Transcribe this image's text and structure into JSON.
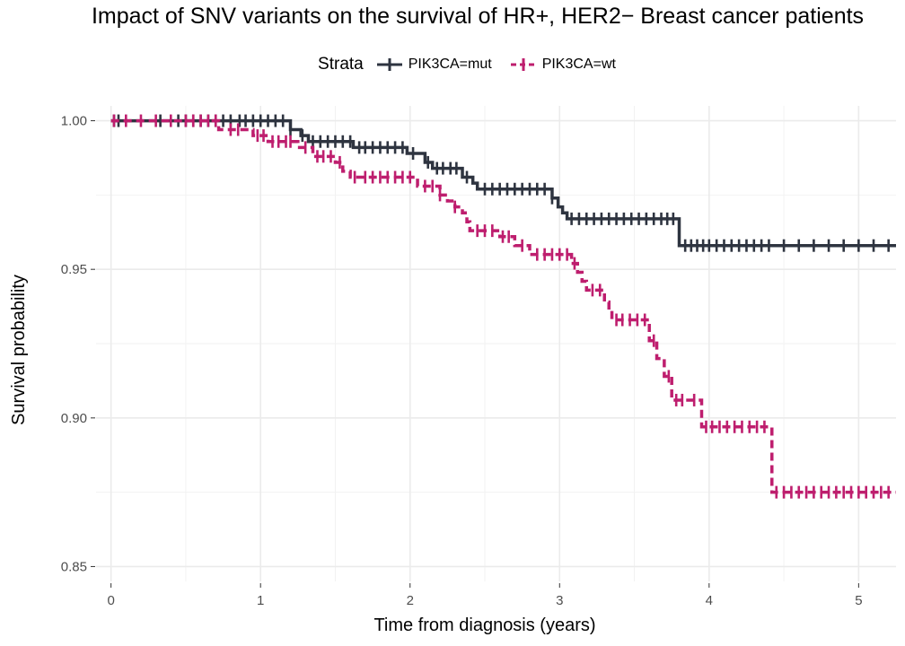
{
  "chart_data": {
    "type": "line",
    "title": "Impact of SNV variants on the survival of HR+, HER2− Breast cancer patients",
    "xlabel": "Time from diagnosis (years)",
    "ylabel": "Survival probability",
    "xlim": [
      -0.1,
      5.25
    ],
    "ylim": [
      0.845,
      1.005
    ],
    "x_ticks": [
      0,
      1,
      2,
      3,
      4,
      5
    ],
    "y_ticks": [
      0.85,
      0.9,
      0.95,
      1.0
    ],
    "y_tick_labels": [
      "0.85",
      "0.90",
      "0.95",
      "1.00"
    ],
    "legend_title": "Strata",
    "legend_position": "top",
    "grid": true,
    "series": [
      {
        "name": "PIK3CA=mut",
        "color": "#2e3440",
        "linestyle": "solid",
        "steps": [
          [
            0,
            1.0
          ],
          [
            1.2,
            0.997
          ],
          [
            1.27,
            0.995
          ],
          [
            1.32,
            0.993
          ],
          [
            1.62,
            0.991
          ],
          [
            1.98,
            0.989
          ],
          [
            2.1,
            0.986
          ],
          [
            2.15,
            0.984
          ],
          [
            2.35,
            0.981
          ],
          [
            2.42,
            0.979
          ],
          [
            2.45,
            0.977
          ],
          [
            2.95,
            0.974
          ],
          [
            2.99,
            0.971
          ],
          [
            3.02,
            0.969
          ],
          [
            3.05,
            0.967
          ],
          [
            3.8,
            0.958
          ],
          [
            5.25,
            0.958
          ]
        ],
        "censor_times": [
          0.02,
          0.05,
          0.33,
          0.45,
          0.5,
          0.55,
          0.6,
          0.65,
          0.7,
          0.75,
          0.8,
          0.86,
          0.9,
          0.95,
          1.0,
          1.05,
          1.1,
          1.15,
          1.2,
          1.28,
          1.35,
          1.4,
          1.45,
          1.5,
          1.55,
          1.6,
          1.66,
          1.7,
          1.75,
          1.8,
          1.85,
          1.9,
          1.95,
          2.02,
          2.12,
          2.18,
          2.22,
          2.27,
          2.31,
          2.38,
          2.5,
          2.55,
          2.6,
          2.65,
          2.7,
          2.75,
          2.8,
          2.85,
          2.9,
          2.95,
          3.08,
          3.13,
          3.18,
          3.23,
          3.28,
          3.33,
          3.38,
          3.43,
          3.48,
          3.53,
          3.58,
          3.63,
          3.68,
          3.72,
          3.76,
          3.84,
          3.88,
          3.92,
          3.96,
          4.0,
          4.05,
          4.1,
          4.15,
          4.2,
          4.25,
          4.3,
          4.35,
          4.4,
          4.5,
          4.6,
          4.7,
          4.8,
          4.9,
          5.0,
          5.1,
          5.2
        ]
      },
      {
        "name": "PIK3CA=wt",
        "color": "#be1e6e",
        "linestyle": "dashed",
        "steps": [
          [
            0,
            1.0
          ],
          [
            0.72,
            0.997
          ],
          [
            0.95,
            0.995
          ],
          [
            1.05,
            0.993
          ],
          [
            1.25,
            0.991
          ],
          [
            1.35,
            0.988
          ],
          [
            1.5,
            0.986
          ],
          [
            1.55,
            0.983
          ],
          [
            1.6,
            0.981
          ],
          [
            2.05,
            0.978
          ],
          [
            2.2,
            0.975
          ],
          [
            2.25,
            0.973
          ],
          [
            2.3,
            0.971
          ],
          [
            2.35,
            0.969
          ],
          [
            2.38,
            0.966
          ],
          [
            2.4,
            0.963
          ],
          [
            2.6,
            0.961
          ],
          [
            2.7,
            0.958
          ],
          [
            2.8,
            0.955
          ],
          [
            3.08,
            0.952
          ],
          [
            3.12,
            0.949
          ],
          [
            3.15,
            0.946
          ],
          [
            3.18,
            0.943
          ],
          [
            3.3,
            0.939
          ],
          [
            3.33,
            0.936
          ],
          [
            3.35,
            0.933
          ],
          [
            3.6,
            0.926
          ],
          [
            3.65,
            0.92
          ],
          [
            3.7,
            0.914
          ],
          [
            3.75,
            0.906
          ],
          [
            3.95,
            0.897
          ],
          [
            4.42,
            0.875
          ],
          [
            5.25,
            0.875
          ]
        ],
        "censor_times": [
          0.02,
          0.1,
          0.2,
          0.3,
          0.4,
          0.5,
          0.55,
          0.6,
          0.65,
          0.7,
          0.8,
          0.85,
          0.98,
          1.02,
          1.08,
          1.12,
          1.17,
          1.2,
          1.3,
          1.38,
          1.42,
          1.47,
          1.53,
          1.63,
          1.7,
          1.75,
          1.8,
          1.85,
          1.9,
          1.95,
          2.0,
          2.1,
          2.15,
          2.2,
          2.3,
          2.45,
          2.5,
          2.55,
          2.62,
          2.66,
          2.75,
          2.85,
          2.9,
          2.95,
          3.0,
          3.05,
          3.1,
          3.22,
          3.27,
          3.38,
          3.42,
          3.47,
          3.52,
          3.57,
          3.63,
          3.73,
          3.78,
          3.82,
          3.9,
          3.98,
          4.02,
          4.07,
          4.12,
          4.17,
          4.22,
          4.27,
          4.32,
          4.37,
          4.45,
          4.5,
          4.55,
          4.6,
          4.65,
          4.7,
          4.75,
          4.8,
          4.85,
          4.9,
          4.95,
          5.0,
          5.05,
          5.1,
          5.15,
          5.2
        ]
      }
    ]
  }
}
